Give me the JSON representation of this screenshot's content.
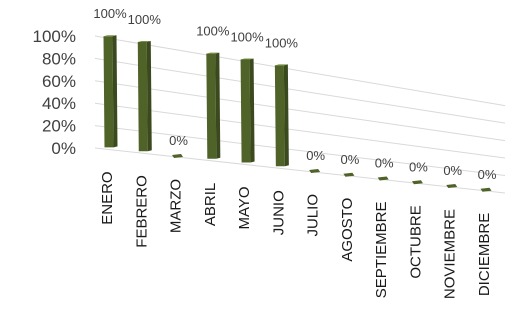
{
  "chart_data": {
    "type": "bar",
    "categories": [
      "ENERO",
      "FEBRERO",
      "MARZO",
      "ABRIL",
      "MAYO",
      "JUNIO",
      "JULIO",
      "AGOSTO",
      "SEPTIEMBRE",
      "OCTUBRE",
      "NOVIEMBRE",
      "DICIEMBRE"
    ],
    "series": [
      {
        "values": [
          100,
          100,
          0,
          100,
          100,
          100,
          0,
          0,
          0,
          0,
          0,
          0
        ],
        "labels": [
          "100%",
          "100%",
          "0%",
          "100%",
          "100%",
          "100%",
          "0%",
          "0%",
          "0%",
          "0%",
          "0%",
          "0%"
        ]
      }
    ],
    "yticks": [
      "0%",
      "20%",
      "40%",
      "60%",
      "80%",
      "100%"
    ],
    "ylim": [
      0,
      100
    ],
    "grid": true,
    "legend": "none",
    "bar_color": "#4f6228",
    "bar_side_color": "#3b4a1e",
    "bar_top_color": "#76923c"
  }
}
